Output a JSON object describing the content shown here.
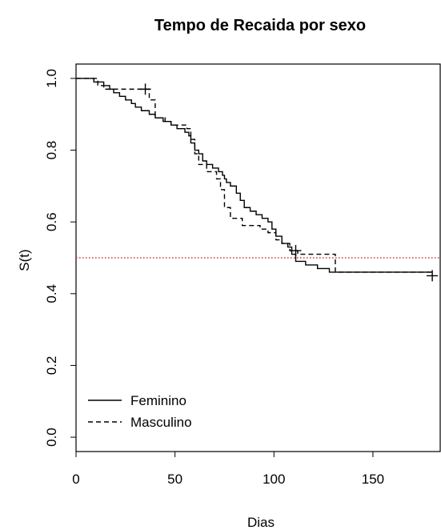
{
  "chart_data": {
    "type": "line",
    "subtype": "kaplan-meier step",
    "title": "Tempo de Recaida por sexo",
    "xlabel": "Dias",
    "ylabel": "S(t)",
    "xlim": [
      0,
      184
    ],
    "ylim": [
      -0.04,
      1.04
    ],
    "x_ticks": [
      0,
      50,
      100,
      150
    ],
    "y_ticks": [
      0.0,
      0.2,
      0.4,
      0.6,
      0.8,
      1.0
    ],
    "y_tick_labels": [
      "0.0",
      "0.2",
      "0.4",
      "0.6",
      "0.8",
      "1.0"
    ],
    "legend_position": "bottom-left",
    "reference_line": {
      "y": 0.5,
      "color": "#c0392b",
      "style": "dotted"
    },
    "series": [
      {
        "name": "Feminino",
        "line_style": "solid",
        "steps": [
          [
            0,
            1.0
          ],
          [
            9,
            0.99
          ],
          [
            14,
            0.98
          ],
          [
            17,
            0.97
          ],
          [
            19,
            0.96
          ],
          [
            22,
            0.95
          ],
          [
            25,
            0.94
          ],
          [
            28,
            0.93
          ],
          [
            30,
            0.92
          ],
          [
            33,
            0.91
          ],
          [
            37,
            0.9
          ],
          [
            40,
            0.89
          ],
          [
            44,
            0.88
          ],
          [
            48,
            0.87
          ],
          [
            51,
            0.86
          ],
          [
            55,
            0.85
          ],
          [
            57,
            0.84
          ],
          [
            58,
            0.82
          ],
          [
            60,
            0.8
          ],
          [
            62,
            0.79
          ],
          [
            64,
            0.77
          ],
          [
            66,
            0.76
          ],
          [
            69,
            0.75
          ],
          [
            72,
            0.74
          ],
          [
            74,
            0.73
          ],
          [
            75,
            0.72
          ],
          [
            76,
            0.71
          ],
          [
            78,
            0.7
          ],
          [
            81,
            0.68
          ],
          [
            83,
            0.66
          ],
          [
            85,
            0.64
          ],
          [
            88,
            0.63
          ],
          [
            91,
            0.62
          ],
          [
            94,
            0.61
          ],
          [
            97,
            0.6
          ],
          [
            99,
            0.58
          ],
          [
            101,
            0.56
          ],
          [
            104,
            0.54
          ],
          [
            107,
            0.53
          ],
          [
            109,
            0.51
          ],
          [
            111,
            0.49
          ],
          [
            116,
            0.48
          ],
          [
            122,
            0.47
          ],
          [
            128,
            0.46
          ],
          [
            180,
            0.46
          ]
        ],
        "censored": [
          [
            111,
            0.52
          ]
        ]
      },
      {
        "name": "Masculino",
        "line_style": "dashed",
        "steps": [
          [
            0,
            1.0
          ],
          [
            11,
            0.98
          ],
          [
            14,
            0.97
          ],
          [
            35,
            0.97
          ],
          [
            37,
            0.94
          ],
          [
            40,
            0.89
          ],
          [
            45,
            0.88
          ],
          [
            48,
            0.87
          ],
          [
            52,
            0.87
          ],
          [
            56,
            0.86
          ],
          [
            58,
            0.83
          ],
          [
            60,
            0.79
          ],
          [
            62,
            0.76
          ],
          [
            66,
            0.74
          ],
          [
            71,
            0.72
          ],
          [
            73,
            0.69
          ],
          [
            75,
            0.64
          ],
          [
            78,
            0.61
          ],
          [
            84,
            0.59
          ],
          [
            90,
            0.59
          ],
          [
            93,
            0.58
          ],
          [
            97,
            0.57
          ],
          [
            101,
            0.55
          ],
          [
            104,
            0.54
          ],
          [
            108,
            0.52
          ],
          [
            112,
            0.51
          ],
          [
            129,
            0.51
          ],
          [
            131,
            0.46
          ],
          [
            180,
            0.45
          ]
        ],
        "censored": [
          [
            35,
            0.97
          ],
          [
            180,
            0.45
          ]
        ]
      }
    ]
  }
}
